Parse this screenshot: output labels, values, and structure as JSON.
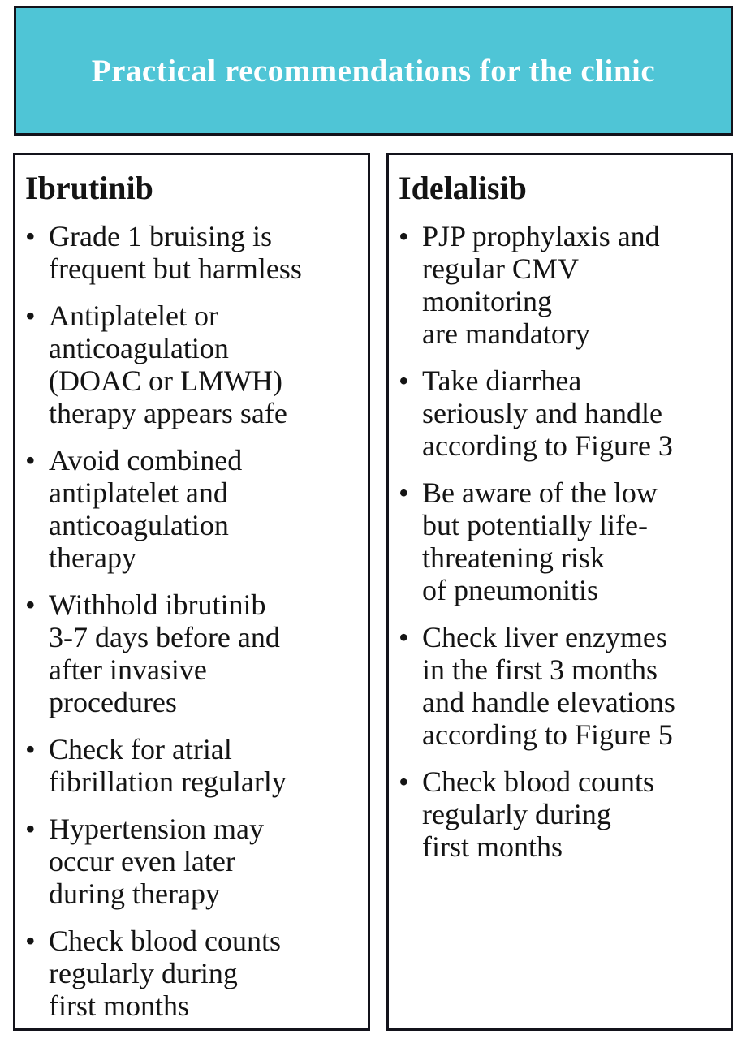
{
  "header": {
    "title": "Practical recommendations for the clinic"
  },
  "colors": {
    "banner_bg": "#4fc5d6",
    "banner_text": "#ffffff",
    "border": "#13131b",
    "body_text": "#141414",
    "page_bg": "#ffffff"
  },
  "bullet_glyph": "•",
  "columns": [
    {
      "heading": "Ibrutinib",
      "bullets": [
        "Grade 1 bruising is\nfrequent but harmless",
        "Antiplatelet or\nanticoagulation\n(DOAC or LMWH)\ntherapy appears safe",
        "Avoid combined\nantiplatelet and\nanticoagulation\ntherapy",
        "Withhold ibrutinib\n3-7 days before and\nafter invasive\nprocedures",
        "Check for atrial\nfibrillation regularly",
        "Hypertension may\noccur even later\nduring therapy",
        "Check blood counts\nregularly during\nfirst months"
      ]
    },
    {
      "heading": "Idelalisib",
      "bullets": [
        "PJP prophylaxis and\nregular CMV\nmonitoring\nare mandatory",
        "Take diarrhea\nseriously and handle\naccording to Figure 3",
        "Be aware of the low\nbut potentially life-\nthreatening risk\nof pneumonitis",
        "Check liver enzymes\nin the first 3 months\nand handle elevations\naccording to Figure 5",
        "Check blood counts\nregularly during\nfirst months"
      ]
    }
  ]
}
